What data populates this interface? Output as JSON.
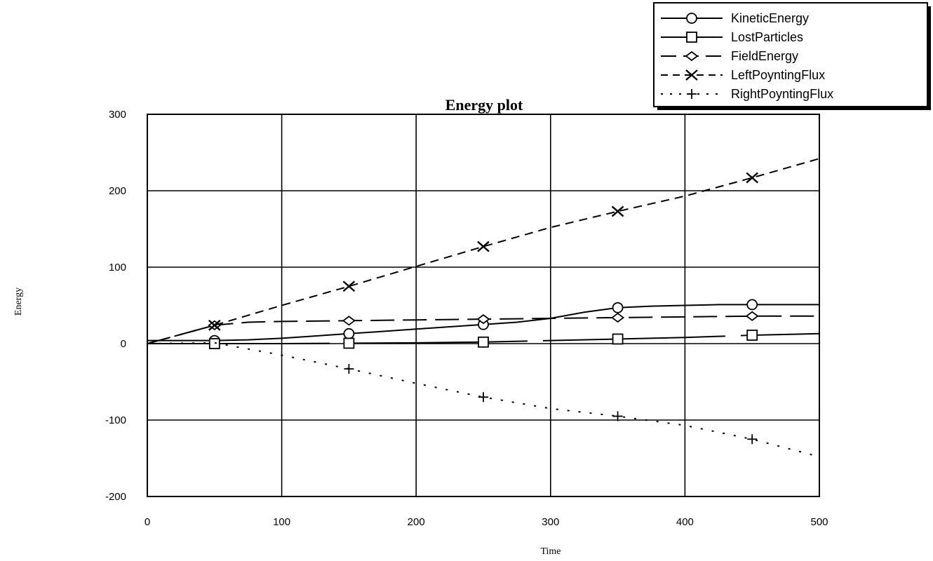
{
  "chart_data": {
    "type": "line",
    "title": "Energy plot",
    "xlabel": "Time",
    "ylabel": "Energy",
    "xlim": [
      0,
      500
    ],
    "ylim": [
      -200,
      300
    ],
    "x_ticks": [
      0,
      100,
      200,
      300,
      400,
      500
    ],
    "y_ticks": [
      300,
      200,
      100,
      0,
      -100,
      -200
    ],
    "grid": true,
    "legend_position": "top-right",
    "series": [
      {
        "name": "KineticEnergy",
        "marker": "circle",
        "dash": "solid",
        "color": "#000000",
        "x": [
          0,
          25,
          50,
          75,
          100,
          125,
          150,
          175,
          200,
          225,
          250,
          275,
          300,
          325,
          350,
          375,
          400,
          425,
          450,
          475,
          500
        ],
        "y": [
          4,
          4,
          4,
          5,
          7,
          10,
          13,
          16,
          19,
          22,
          25,
          28,
          33,
          41,
          47,
          49,
          50,
          51,
          51,
          51,
          51
        ],
        "marker_x": [
          50,
          150,
          250,
          350,
          450
        ],
        "marker_y": [
          4,
          13,
          25,
          47,
          51
        ]
      },
      {
        "name": "LostParticles",
        "marker": "square",
        "dash": "solid-long-gaps",
        "color": "#000000",
        "x": [
          0,
          50,
          100,
          150,
          200,
          250,
          300,
          350,
          400,
          450,
          500
        ],
        "y": [
          0,
          0,
          0,
          0.5,
          1,
          2,
          4,
          6,
          8,
          11,
          13
        ],
        "marker_x": [
          50,
          150,
          250,
          350,
          450
        ],
        "marker_y": [
          0,
          0.5,
          2,
          6,
          11
        ]
      },
      {
        "name": "FieldEnergy",
        "marker": "diamond",
        "dash": "long-dash",
        "color": "#000000",
        "x": [
          0,
          25,
          50,
          75,
          100,
          150,
          200,
          250,
          300,
          350,
          400,
          450,
          500
        ],
        "y": [
          0,
          12,
          24,
          28,
          29,
          30,
          31,
          32,
          33,
          34,
          35,
          36,
          36
        ],
        "marker_x": [
          50,
          150,
          250,
          350,
          450
        ],
        "marker_y": [
          24,
          30,
          32,
          34,
          36
        ]
      },
      {
        "name": "LeftPoyntingFlux",
        "marker": "x",
        "dash": "dash",
        "color": "#000000",
        "x": [
          0,
          50,
          100,
          150,
          200,
          250,
          300,
          350,
          400,
          450,
          500
        ],
        "y": [
          0,
          24,
          50,
          75,
          101,
          127,
          152,
          173,
          193,
          217,
          242
        ],
        "marker_x": [
          50,
          150,
          250,
          350,
          450
        ],
        "marker_y": [
          24,
          75,
          127,
          173,
          217
        ]
      },
      {
        "name": "RightPoyntingFlux",
        "marker": "plus",
        "dash": "dot",
        "color": "#000000",
        "x": [
          0,
          50,
          100,
          150,
          200,
          250,
          300,
          350,
          400,
          450,
          500
        ],
        "y": [
          0,
          1,
          -15,
          -33,
          -52,
          -70,
          -85,
          -95,
          -107,
          -125,
          -148
        ],
        "marker_x": [
          150,
          250,
          350,
          450
        ],
        "marker_y": [
          -33,
          -70,
          -95,
          -125
        ]
      }
    ]
  }
}
